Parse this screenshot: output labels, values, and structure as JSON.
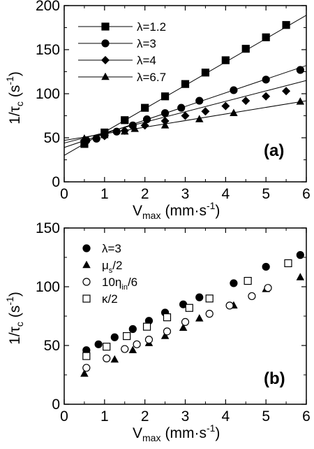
{
  "chart_data": [
    {
      "type": "scatter",
      "panel_label": "(a)",
      "ylabel_main": "1/τ",
      "ylabel_sub": "c",
      "ylabel_unit": "(s",
      "ylabel_exp": "-1",
      "ylabel_close": ")",
      "xlabel_main": "V",
      "xlabel_sub": "max",
      "xlabel_unit": "(mm·s",
      "xlabel_exp": "-1",
      "xlabel_close": ")",
      "xlim": [
        0,
        6
      ],
      "ylim": [
        0,
        200
      ],
      "xticks": [
        "0",
        "1",
        "2",
        "3",
        "4",
        "5",
        "6"
      ],
      "yticks": [
        "0",
        "50",
        "100",
        "150",
        "200"
      ],
      "legend_position": "top-left",
      "series": [
        {
          "name": "λ=1.2",
          "marker": "square",
          "x": [
            0.5,
            1.0,
            1.5,
            2.0,
            2.5,
            3.0,
            3.5,
            4.0,
            4.5,
            5.0,
            5.5
          ],
          "y": [
            43,
            56,
            70,
            84,
            97,
            111,
            124,
            138,
            151,
            164,
            178
          ],
          "fit": [
            [
              0,
              30
            ],
            [
              6,
              189
            ]
          ]
        },
        {
          "name": "λ=3",
          "marker": "circle",
          "x": [
            0.55,
            0.8,
            1.0,
            1.3,
            1.7,
            2.05,
            2.5,
            2.9,
            3.35,
            4.2,
            5.0,
            5.85
          ],
          "y": [
            47,
            49,
            53,
            57,
            64,
            71,
            78,
            84,
            92,
            104,
            116,
            127
          ],
          "fit": [
            [
              0,
              39
            ],
            [
              6,
              132
            ]
          ]
        },
        {
          "name": "λ=4",
          "marker": "diamond",
          "x": [
            0.5,
            1.0,
            1.5,
            2.0,
            2.5,
            3.0,
            3.5,
            4.0,
            4.5,
            5.0,
            5.5
          ],
          "y": [
            47,
            52,
            58,
            64,
            69,
            75,
            80,
            86,
            92,
            97,
            103
          ],
          "fit": [
            [
              0,
              44
            ],
            [
              6,
              115
            ]
          ]
        },
        {
          "name": "λ=6.7",
          "marker": "triangle",
          "x": [
            0.5,
            1.0,
            1.5,
            1.75,
            2.5,
            3.35,
            4.2,
            5.85
          ],
          "y": [
            49,
            53,
            57,
            60,
            64,
            71,
            78,
            91
          ],
          "fit": [
            [
              0,
              47
            ],
            [
              6,
              92
            ]
          ]
        }
      ]
    },
    {
      "type": "scatter",
      "panel_label": "(b)",
      "ylabel_main": "1/τ",
      "ylabel_sub": "c",
      "ylabel_unit": "(s",
      "ylabel_exp": "-1",
      "ylabel_close": ")",
      "xlabel_main": "V",
      "xlabel_sub": "max",
      "xlabel_unit": "(mm·s",
      "xlabel_exp": "-1",
      "xlabel_close": ")",
      "xlim": [
        0,
        6
      ],
      "ylim": [
        0,
        150
      ],
      "xticks": [
        "0",
        "1",
        "2",
        "3",
        "4",
        "5",
        "6"
      ],
      "yticks": [
        "0",
        "50",
        "100",
        "150"
      ],
      "legend_position": "top-left",
      "series": [
        {
          "name_main": "λ=3",
          "name_sub": "",
          "name_tail": "",
          "marker": "circle",
          "x": [
            0.55,
            0.85,
            1.25,
            1.7,
            2.1,
            2.5,
            2.95,
            3.35,
            4.2,
            5.0,
            5.85
          ],
          "y": [
            46,
            51,
            57,
            64,
            71,
            78,
            85,
            91,
            103,
            117,
            127
          ]
        },
        {
          "name_main": "μ",
          "name_sub": "s",
          "name_tail": "/2",
          "marker": "triangle",
          "x": [
            0.5,
            1.25,
            1.7,
            2.1,
            2.5,
            2.95,
            3.35,
            4.2,
            5.0,
            5.85
          ],
          "y": [
            26,
            38,
            46,
            52,
            58,
            65,
            73,
            84,
            98,
            108
          ]
        },
        {
          "name_main": "10η",
          "name_sub": "in",
          "name_tail": "/6",
          "marker": "circle-open",
          "x": [
            0.55,
            1.05,
            1.5,
            1.8,
            2.1,
            2.55,
            3.0,
            3.6,
            4.1,
            4.65,
            5.05
          ],
          "y": [
            31,
            39,
            47,
            51,
            55,
            62,
            70,
            77,
            84,
            92,
            99
          ]
        },
        {
          "name_main": "κ",
          "name_sub": "",
          "name_tail": "/2",
          "marker": "square-open",
          "x": [
            0.55,
            1.05,
            1.55,
            2.05,
            2.55,
            3.1,
            3.6,
            4.55,
            5.55
          ],
          "y": [
            41,
            49,
            58,
            66,
            74,
            82,
            90,
            105,
            120
          ]
        }
      ]
    }
  ]
}
